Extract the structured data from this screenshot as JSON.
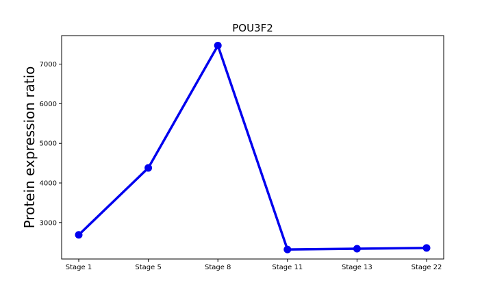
{
  "chart_data": {
    "type": "line",
    "title": "POU3F2",
    "xlabel": "",
    "ylabel": "Protein expression ratio",
    "categories": [
      "Stage 1",
      "Stage 5",
      "Stage 8",
      "Stage 11",
      "Stage 13",
      "Stage 22"
    ],
    "series": [
      {
        "values": [
          2690,
          4380,
          7470,
          2320,
          2340,
          2360
        ],
        "color": "#0000ee"
      }
    ],
    "yticks": [
      3000,
      4000,
      5000,
      6000,
      7000
    ],
    "ylim": [
      2080,
      7720
    ],
    "grid": false,
    "legend": "none"
  }
}
